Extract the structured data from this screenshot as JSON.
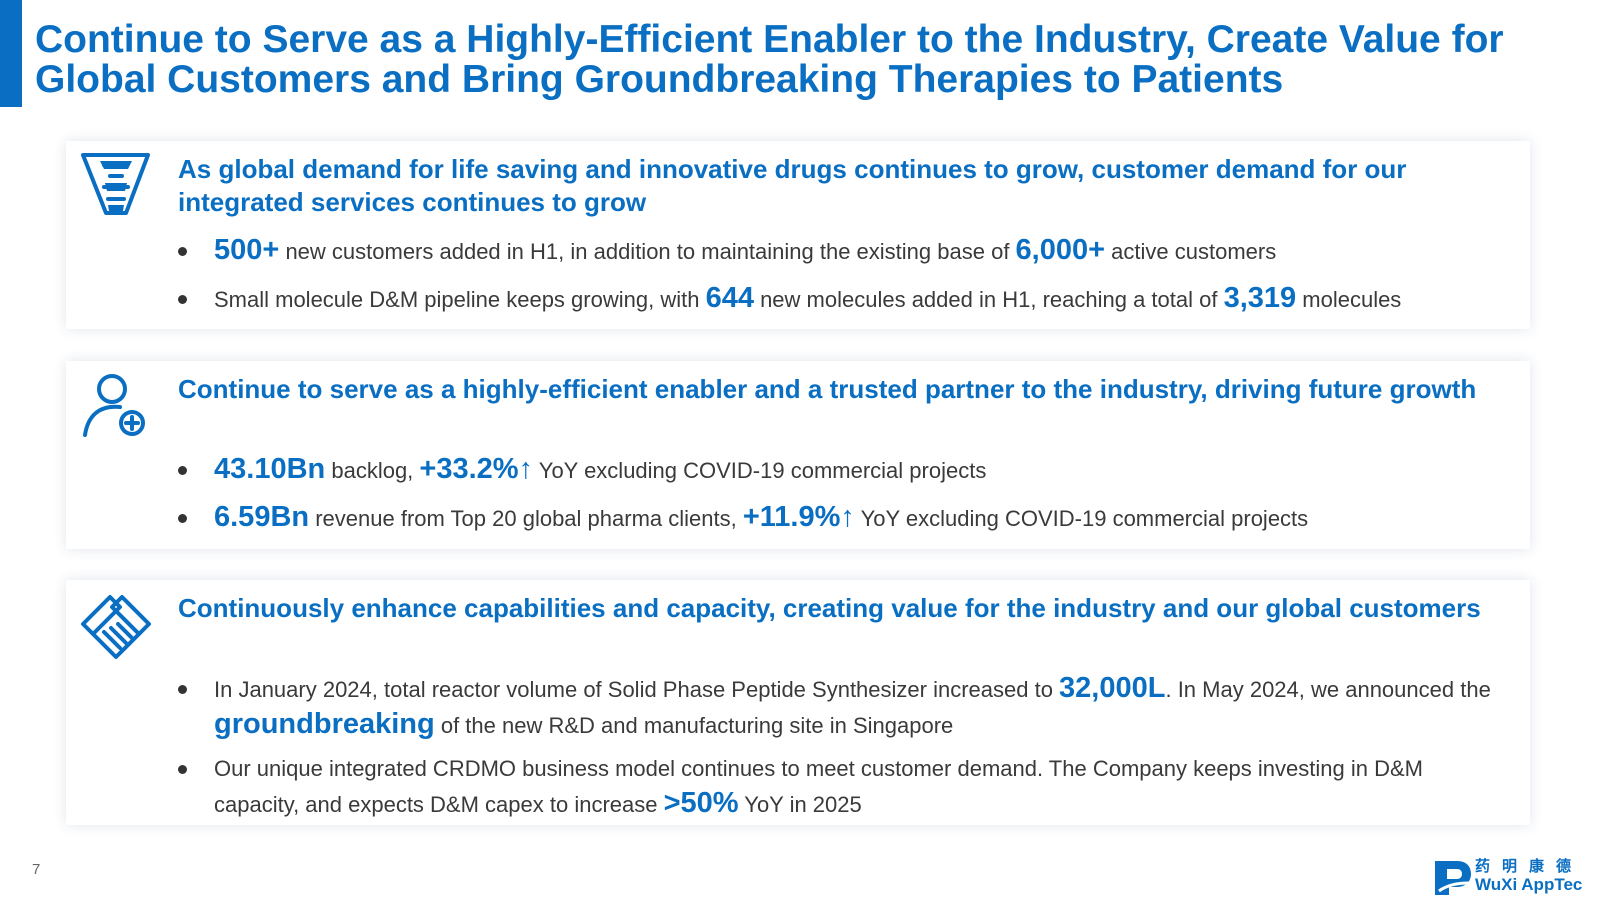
{
  "title": {
    "line1": "Continue to Serve as a Highly-Efficient Enabler to the Industry, Create Value for",
    "line2": "Global Customers and Bring Groundbreaking Therapies to Patients"
  },
  "cards": [
    {
      "icon": "funnel-icon",
      "heading": "As global demand for life saving and innovative drugs continues to grow, customer demand for our integrated services continues to grow",
      "bullets": [
        {
          "p1": "500+",
          "p2": " new customers added in H1, in addition to maintaining the existing base of ",
          "p3": "6,000+",
          "p4": " active customers"
        },
        {
          "p1": "Small molecule D&M pipeline keeps growing, with ",
          "p2": "644",
          "p3": " new molecules added in H1, reaching a total of ",
          "p4": "3,319",
          "p5": " molecules"
        }
      ]
    },
    {
      "icon": "user-plus-icon",
      "heading": "Continue to serve as a highly-efficient enabler and a trusted partner to the industry, driving future growth",
      "bullets": [
        {
          "p1": "43.10Bn",
          "p2": " backlog, ",
          "p3": "+33.2%↑",
          "p4": " YoY excluding COVID-19 commercial projects"
        },
        {
          "p1": "6.59Bn",
          "p2": " revenue from Top 20 global pharma clients, ",
          "p3": "+11.9%↑",
          "p4": " YoY excluding COVID-19 commercial projects"
        }
      ]
    },
    {
      "icon": "handshake-icon",
      "heading": "Continuously enhance capabilities and capacity, creating value for the industry and our global customers",
      "bullets": [
        {
          "p1": "In January 2024, total reactor volume of Solid Phase Peptide Synthesizer increased to ",
          "p2": "32,000L",
          "p3": ". In May 2024, we announced the ",
          "p4": "groundbreaking",
          "p5": " of the new R&D and manufacturing site in Singapore"
        },
        {
          "p1": "Our unique integrated CRDMO business model continues to meet customer demand. The Company keeps investing in D&M capacity, and expects D&M capex to increase ",
          "p2": ">50%",
          "p3": " YoY in 2025"
        }
      ]
    }
  ],
  "footer": {
    "page_number": "7",
    "logo_cn": "药明康德",
    "logo_en": "WuXi AppTec"
  },
  "colors": {
    "accent": "#0a6fc2",
    "body_text": "#3a3a3a"
  }
}
